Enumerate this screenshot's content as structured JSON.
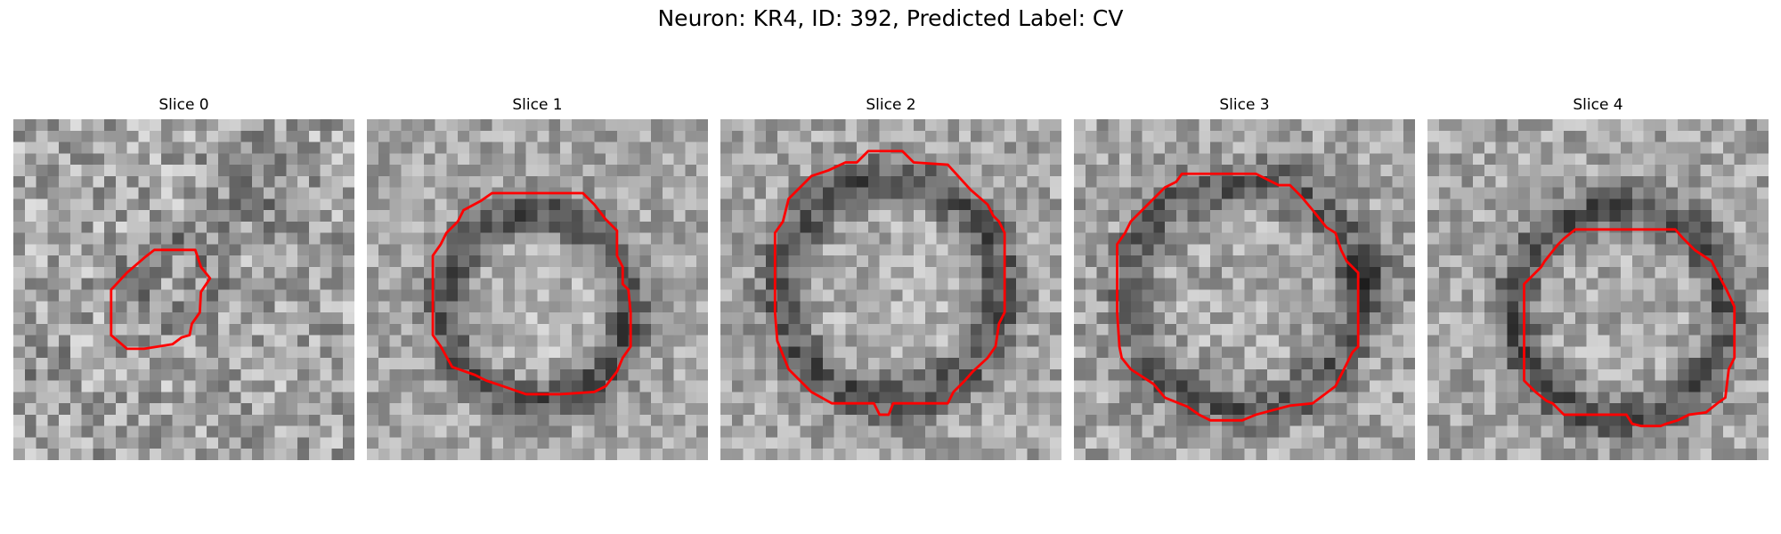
{
  "figure": {
    "title": "Neuron: KR4, ID: 392, Predicted Label: CV"
  },
  "panels": [
    {
      "title": "Slice 0",
      "outline_color": "#ff0000"
    },
    {
      "title": "Slice 1",
      "outline_color": "#ff0000"
    },
    {
      "title": "Slice 2",
      "outline_color": "#ff0000"
    },
    {
      "title": "Slice 3",
      "outline_color": "#ff0000"
    },
    {
      "title": "Slice 4",
      "outline_color": "#ff0000"
    }
  ]
}
